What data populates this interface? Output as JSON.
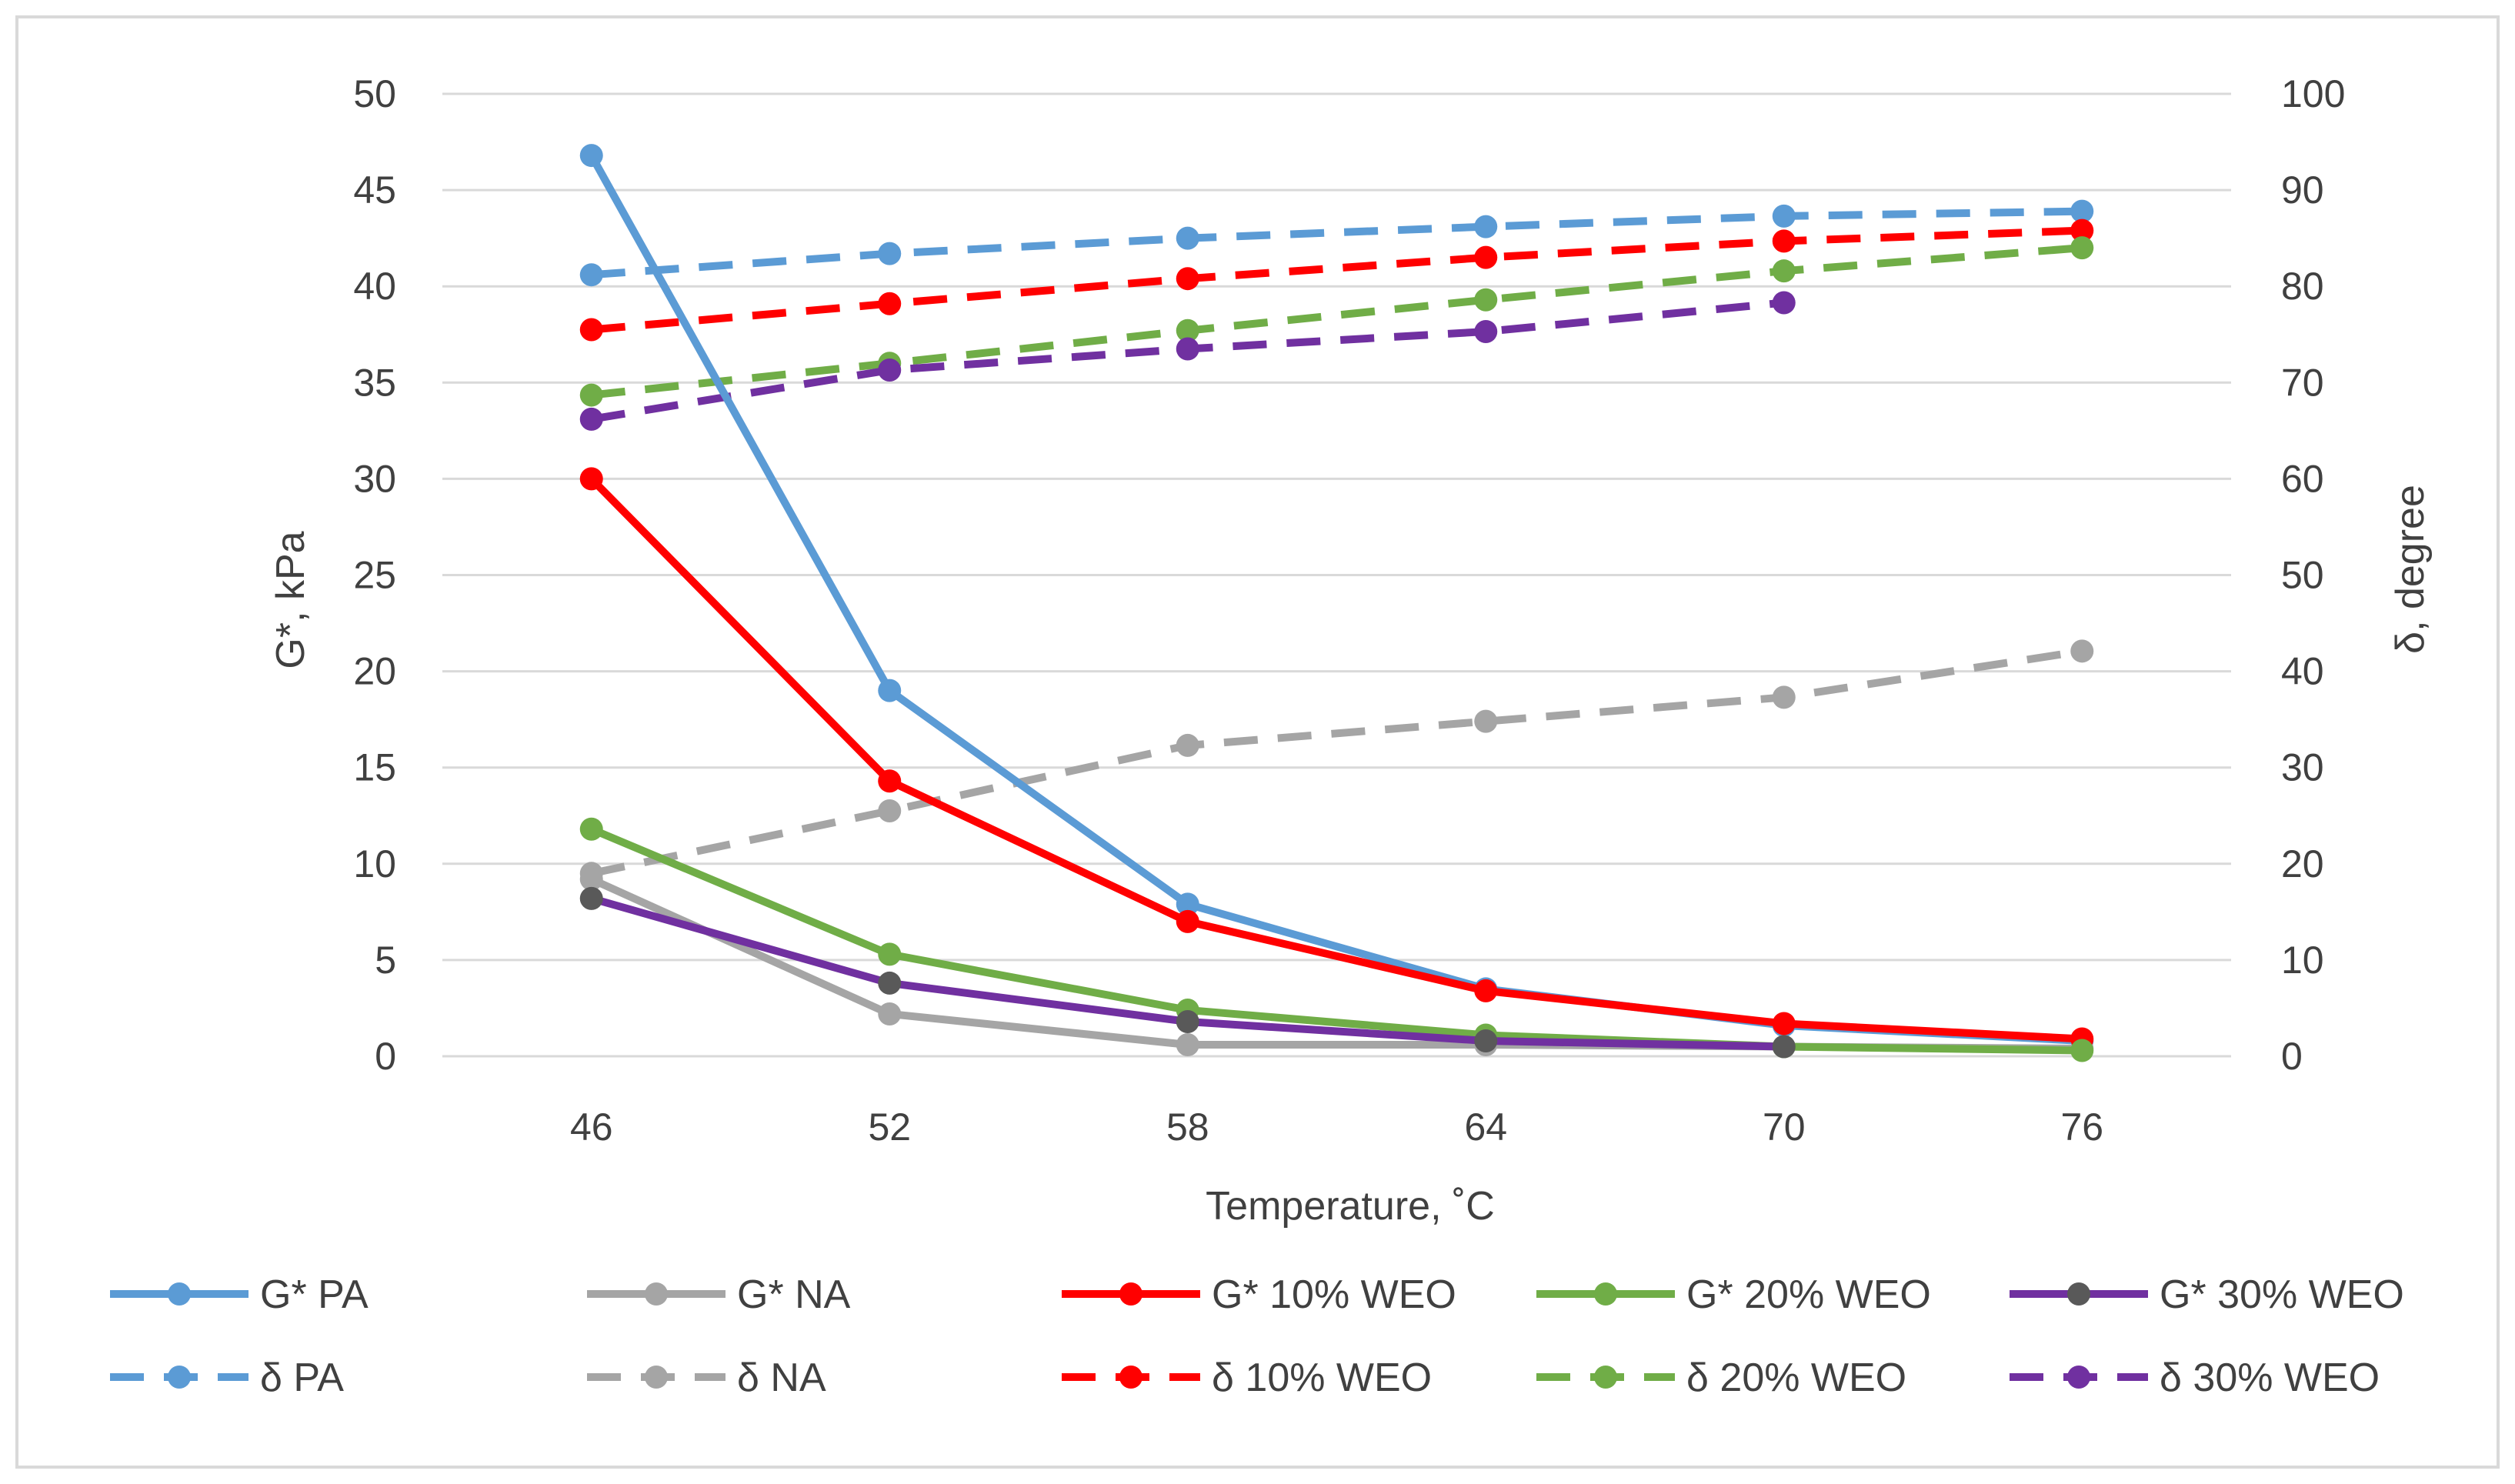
{
  "chart_data": {
    "type": "line",
    "x": [
      46,
      52,
      58,
      64,
      70,
      76
    ],
    "xlabel": "Temperature, ˚C",
    "ylabel": "G*, kPa",
    "y2label": "δ, degree",
    "ylim": [
      0,
      50
    ],
    "y2lim": [
      0,
      100
    ],
    "yticks": [
      0,
      5,
      10,
      15,
      20,
      25,
      30,
      35,
      40,
      45,
      50
    ],
    "y2ticks": [
      0,
      10,
      20,
      30,
      40,
      50,
      60,
      70,
      80,
      90,
      100
    ],
    "grid": true,
    "legend_position": "bottom",
    "series": [
      {
        "name": "G* PA",
        "axis": "left",
        "style": "solid",
        "color": "#5b9bd5",
        "marker_color": "#5b9bd5",
        "values": [
          46.8,
          19.0,
          7.9,
          3.5,
          1.6,
          0.8
        ]
      },
      {
        "name": "G* NA",
        "axis": "left",
        "style": "solid",
        "color": "#a5a5a5",
        "marker_color": "#a5a5a5",
        "values": [
          9.2,
          2.2,
          0.6,
          0.6,
          0.5,
          0.4
        ]
      },
      {
        "name": "G* 10% WEO",
        "axis": "left",
        "style": "solid",
        "color": "#ff0000",
        "marker_color": "#ff0000",
        "values": [
          30.0,
          14.3,
          7.0,
          3.4,
          1.7,
          0.9
        ]
      },
      {
        "name": "G* 20% WEO",
        "axis": "left",
        "style": "solid",
        "color": "#70ad47",
        "marker_color": "#70ad47",
        "values": [
          11.8,
          5.3,
          2.4,
          1.1,
          0.5,
          0.3
        ]
      },
      {
        "name": "G* 30% WEO",
        "axis": "left",
        "style": "solid",
        "color": "#7030a0",
        "marker_color": "#595959",
        "values": [
          8.2,
          3.8,
          1.8,
          0.8,
          0.5,
          null
        ]
      },
      {
        "name": "δ PA",
        "axis": "right",
        "style": "dashed",
        "color": "#5b9bd5",
        "marker_color": "#5b9bd5",
        "values": [
          81.2,
          83.4,
          85.0,
          86.2,
          87.3,
          87.8
        ]
      },
      {
        "name": "δ NA",
        "axis": "right",
        "style": "dashed",
        "color": "#a5a5a5",
        "marker_color": "#a5a5a5",
        "values": [
          19.0,
          25.5,
          32.3,
          34.8,
          37.3,
          42.1
        ]
      },
      {
        "name": "δ 10% WEO",
        "axis": "right",
        "style": "dashed",
        "color": "#ff0000",
        "marker_color": "#ff0000",
        "values": [
          75.5,
          78.2,
          80.8,
          83.0,
          84.7,
          85.8
        ]
      },
      {
        "name": "δ 20% WEO",
        "axis": "right",
        "style": "dashed",
        "color": "#70ad47",
        "marker_color": "#70ad47",
        "values": [
          68.7,
          72.0,
          75.4,
          78.6,
          81.6,
          84.0
        ]
      },
      {
        "name": "δ 30% WEO",
        "axis": "right",
        "style": "dashed",
        "color": "#7030a0",
        "marker_color": "#7030a0",
        "values": [
          66.2,
          71.3,
          73.5,
          75.3,
          78.3,
          null
        ]
      }
    ]
  }
}
